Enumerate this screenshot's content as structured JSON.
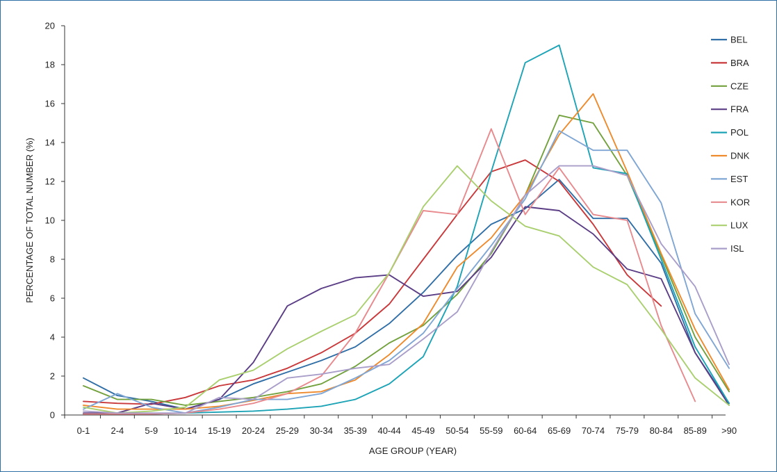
{
  "chart_data": {
    "type": "line",
    "xlabel": "AGE GROUP (YEAR)",
    "ylabel": "PERCENTAGE OF TOTAL NUMBER (%)",
    "ylim": [
      0,
      20
    ],
    "yticks": [
      "0",
      "2",
      "4",
      "6",
      "8",
      "10",
      "12",
      "14",
      "16",
      "18",
      "20"
    ],
    "categories": [
      "0-1",
      "2-4",
      "5-9",
      "10-14",
      "15-19",
      "20-24",
      "25-29",
      "30-34",
      "35-39",
      "40-44",
      "45-49",
      "50-54",
      "55-59",
      "60-64",
      "65-69",
      "70-74",
      "75-79",
      "80-84",
      "85-89",
      ">90"
    ],
    "grid": false,
    "legend_position": "right",
    "series": [
      {
        "name": "BEL",
        "color": "#2f6ea6",
        "values": [
          1.9,
          1.0,
          0.7,
          0.3,
          0.8,
          1.6,
          2.2,
          2.8,
          3.5,
          4.7,
          6.3,
          8.2,
          9.8,
          10.6,
          12.1,
          10.1,
          10.1,
          7.8,
          3.2,
          0.6
        ]
      },
      {
        "name": "BRA",
        "color": "#c9383a",
        "values": [
          0.7,
          0.6,
          0.55,
          0.9,
          1.5,
          1.8,
          2.4,
          3.2,
          4.2,
          5.7,
          8.0,
          10.3,
          12.5,
          13.1,
          12.0,
          9.8,
          7.2,
          5.6,
          null,
          null
        ]
      },
      {
        "name": "CZE",
        "color": "#72a13d",
        "values": [
          1.5,
          0.8,
          0.8,
          0.5,
          0.7,
          0.9,
          1.2,
          1.6,
          2.5,
          3.7,
          4.6,
          6.2,
          8.3,
          11.3,
          15.4,
          15.0,
          12.3,
          8.2,
          4.0,
          1.2
        ]
      },
      {
        "name": "FRA",
        "color": "#5a3d85",
        "values": [
          0.1,
          0.1,
          0.6,
          0.3,
          0.8,
          2.7,
          5.6,
          6.5,
          7.05,
          7.2,
          6.1,
          6.35,
          8.1,
          10.7,
          10.5,
          9.3,
          7.5,
          7.0,
          3.2,
          0.5
        ]
      },
      {
        "name": "POL",
        "color": "#1ca3b6",
        "values": [
          0.05,
          0.05,
          0.05,
          0.1,
          0.15,
          0.2,
          0.3,
          0.45,
          0.8,
          1.6,
          3.0,
          6.6,
          12.5,
          18.1,
          19.0,
          12.7,
          12.4,
          8.0,
          3.5,
          0.6
        ]
      },
      {
        "name": "DNK",
        "color": "#ee8a2c",
        "values": [
          0.5,
          0.3,
          0.3,
          0.3,
          0.45,
          0.75,
          1.1,
          1.2,
          1.8,
          3.1,
          4.7,
          7.6,
          9.1,
          11.3,
          14.4,
          16.5,
          12.5,
          8.3,
          4.4,
          1.3
        ]
      },
      {
        "name": "EST",
        "color": "#7fa6d4",
        "values": [
          0.3,
          1.1,
          0.4,
          0.1,
          0.4,
          0.8,
          0.8,
          1.1,
          1.9,
          2.8,
          4.2,
          6.5,
          8.7,
          11.1,
          14.6,
          13.6,
          13.6,
          10.9,
          5.2,
          2.4
        ]
      },
      {
        "name": "KOR",
        "color": "#e8898d",
        "values": [
          0.05,
          0.05,
          0.05,
          0.1,
          0.3,
          0.6,
          1.1,
          2.0,
          4.2,
          7.3,
          10.5,
          10.3,
          14.7,
          10.3,
          12.7,
          10.3,
          10.0,
          4.6,
          0.7,
          null
        ]
      },
      {
        "name": "LUX",
        "color": "#a9cf6f",
        "values": [
          0.4,
          0.1,
          0.2,
          0.4,
          1.8,
          2.3,
          3.4,
          4.3,
          5.15,
          7.3,
          10.7,
          12.8,
          11.0,
          9.7,
          9.2,
          7.6,
          6.7,
          4.4,
          1.9,
          0.5
        ]
      },
      {
        "name": "ISL",
        "color": "#a99ec9",
        "values": [
          0.2,
          0.1,
          0.1,
          0.1,
          0.9,
          0.8,
          1.9,
          2.1,
          2.4,
          2.6,
          3.9,
          5.3,
          8.4,
          11.3,
          12.8,
          12.8,
          12.3,
          8.8,
          6.6,
          2.6
        ]
      }
    ]
  }
}
